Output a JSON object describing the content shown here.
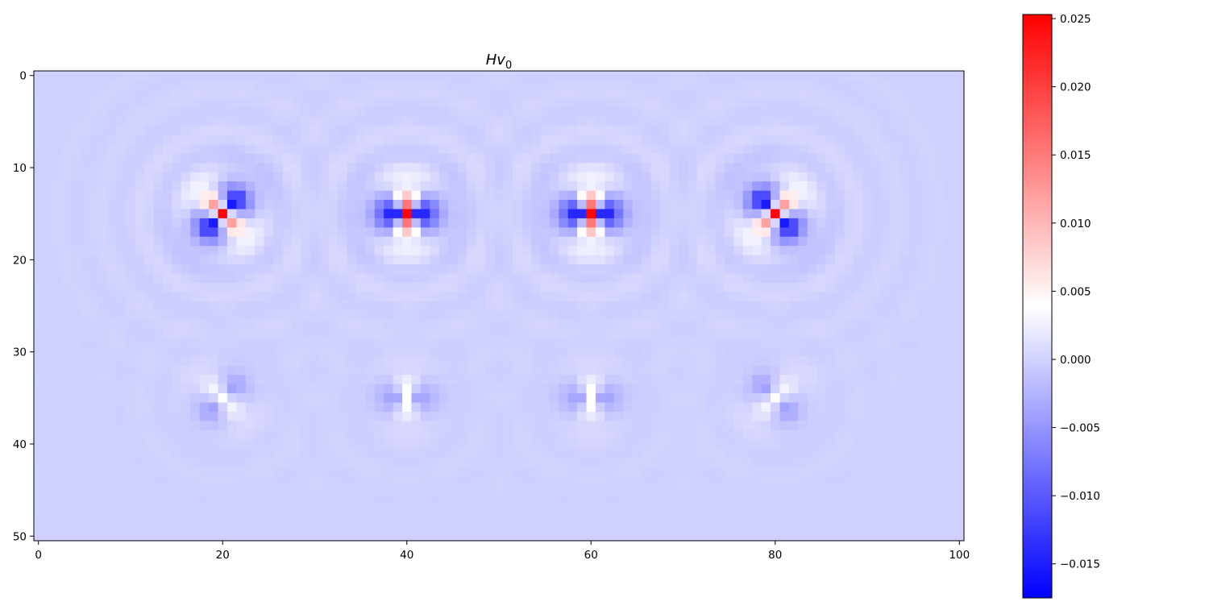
{
  "chart_data": {
    "type": "heatmap",
    "title": {
      "main": "Hv",
      "subscript": "0"
    },
    "xlabel": "",
    "ylabel": "",
    "grid_shape": {
      "rows": 51,
      "cols": 101
    },
    "xlim": [
      -0.5,
      100.5
    ],
    "ylim": [
      50.5,
      -0.5
    ],
    "x_ticks": [
      0,
      20,
      40,
      60,
      80,
      100
    ],
    "x_tick_labels": [
      "0",
      "20",
      "40",
      "60",
      "80",
      "100"
    ],
    "y_ticks": [
      0,
      10,
      20,
      30,
      40,
      50
    ],
    "y_tick_labels": [
      "0",
      "10",
      "20",
      "30",
      "40",
      "50"
    ],
    "colorbar": {
      "colormap": "bwr",
      "vmin": -0.0175,
      "vmax": 0.0253,
      "ticks": [
        0.025,
        0.02,
        0.015,
        0.01,
        0.005,
        0.0,
        -0.005,
        -0.01,
        -0.015
      ],
      "tick_labels": [
        "0.025",
        "0.020",
        "0.015",
        "0.010",
        "0.005",
        "0.000",
        "−0.005",
        "−0.010",
        "−0.015"
      ]
    },
    "background_value": 0.0,
    "features": [
      {
        "center_x": 20,
        "center_y": 15,
        "peak": 0.025,
        "min": -0.0175,
        "lobe_angle_deg": 45
      },
      {
        "center_x": 40,
        "center_y": 15,
        "peak": 0.025,
        "min": -0.0175,
        "lobe_angle_deg": 90
      },
      {
        "center_x": 60,
        "center_y": 15,
        "peak": 0.025,
        "min": -0.0175,
        "lobe_angle_deg": 90
      },
      {
        "center_x": 80,
        "center_y": 15,
        "peak": 0.025,
        "min": -0.0175,
        "lobe_angle_deg": 135
      },
      {
        "center_x": 20,
        "center_y": 35,
        "peak": 0.004,
        "min": -0.005,
        "lobe_angle_deg": 45
      },
      {
        "center_x": 40,
        "center_y": 35,
        "peak": 0.004,
        "min": -0.005,
        "lobe_angle_deg": 90
      },
      {
        "center_x": 60,
        "center_y": 35,
        "peak": 0.004,
        "min": -0.005,
        "lobe_angle_deg": 90
      },
      {
        "center_x": 80,
        "center_y": 35,
        "peak": 0.004,
        "min": -0.005,
        "lobe_angle_deg": 135
      }
    ]
  }
}
